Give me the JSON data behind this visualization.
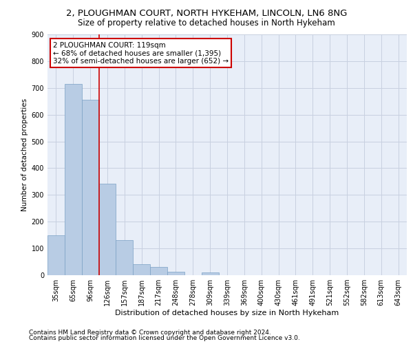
{
  "title1": "2, PLOUGHMAN COURT, NORTH HYKEHAM, LINCOLN, LN6 8NG",
  "title2": "Size of property relative to detached houses in North Hykeham",
  "xlabel": "Distribution of detached houses by size in North Hykeham",
  "ylabel": "Number of detached properties",
  "categories": [
    "35sqm",
    "65sqm",
    "96sqm",
    "126sqm",
    "157sqm",
    "187sqm",
    "217sqm",
    "248sqm",
    "278sqm",
    "309sqm",
    "339sqm",
    "369sqm",
    "400sqm",
    "430sqm",
    "461sqm",
    "491sqm",
    "521sqm",
    "552sqm",
    "582sqm",
    "613sqm",
    "643sqm"
  ],
  "values": [
    150,
    714,
    655,
    343,
    130,
    40,
    30,
    12,
    0,
    10,
    0,
    0,
    0,
    0,
    0,
    0,
    0,
    0,
    0,
    0,
    0
  ],
  "bar_color": "#b8cce4",
  "bar_edge_color": "#7aa0c4",
  "vline_x": 2.5,
  "vline_color": "#cc0000",
  "annotation_line1": "2 PLOUGHMAN COURT: 119sqm",
  "annotation_line2": "← 68% of detached houses are smaller (1,395)",
  "annotation_line3": "32% of semi-detached houses are larger (652) →",
  "ylim": [
    0,
    900
  ],
  "yticks": [
    0,
    100,
    200,
    300,
    400,
    500,
    600,
    700,
    800,
    900
  ],
  "grid_color": "#c8d0e0",
  "background_color": "#e8eef8",
  "footer1": "Contains HM Land Registry data © Crown copyright and database right 2024.",
  "footer2": "Contains public sector information licensed under the Open Government Licence v3.0.",
  "title1_fontsize": 9.5,
  "title2_fontsize": 8.5,
  "annotation_fontsize": 7.5,
  "xlabel_fontsize": 8,
  "ylabel_fontsize": 7.5,
  "tick_fontsize": 7,
  "footer_fontsize": 6.5
}
